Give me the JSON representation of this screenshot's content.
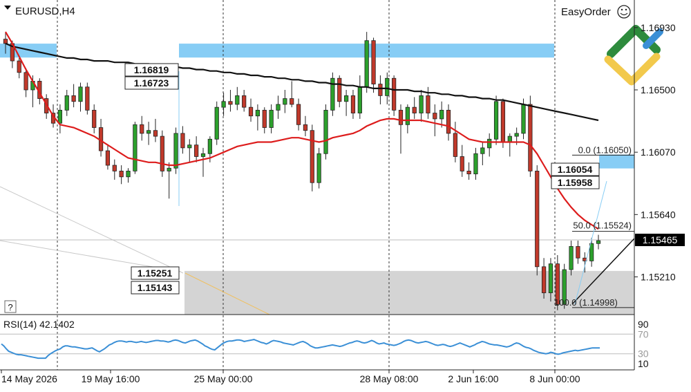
{
  "symbol_label": "EURUSD,H4",
  "easyorder_label": "EasyOrder",
  "help_label": "?",
  "colors": {
    "bull": "#2ca02c",
    "bear": "#c0392b",
    "ma_fast": "#dd1c1c",
    "ma_slow": "#111111",
    "rsi": "#3a8fd6",
    "zone_blue": "#87cdf5",
    "zone_gray": "#d4d4d4"
  },
  "chart_data": [
    {
      "type": "candlestick",
      "title": "EURUSD,H4",
      "ylim": [
        1.1495,
        1.1712
      ],
      "y_ticks": [
        "1.16930",
        "1.16500",
        "1.16070",
        "1.15640",
        "1.15210"
      ],
      "current_price": "1.15465",
      "x_tick_labels": [
        "14 May 2026",
        "19 May 16:00",
        "25 May 00:00",
        "28 May 08:00",
        "2 Jun 16:00",
        "8 Jun 00:00"
      ],
      "price_labels": [
        "1.16819",
        "1.16723",
        "1.16054",
        "1.15958",
        "1.15251",
        "1.15143"
      ],
      "fib_levels": [
        {
          "label": "0.0 (1.16050)",
          "price": 1.1605
        },
        {
          "label": "50.0 (1.15524)",
          "price": 1.15524
        },
        {
          "label": "100.0 (1.14998)",
          "price": 1.14998
        }
      ],
      "zones": [
        {
          "name": "supply-upper",
          "top": 1.16819,
          "bottom": 1.16723
        },
        {
          "name": "supply-right",
          "top": 1.16054,
          "bottom": 1.15958
        },
        {
          "name": "demand",
          "top": 1.15251,
          "bottom": 1.15143
        }
      ],
      "candles": [
        [
          1.1685,
          1.169,
          1.1675,
          1.1682
        ],
        [
          1.1682,
          1.1684,
          1.1665,
          1.167
        ],
        [
          1.167,
          1.1672,
          1.1658,
          1.1662
        ],
        [
          1.1662,
          1.1665,
          1.1645,
          1.165
        ],
        [
          1.165,
          1.166,
          1.1638,
          1.1656
        ],
        [
          1.1656,
          1.1658,
          1.164,
          1.1644
        ],
        [
          1.1644,
          1.1647,
          1.163,
          1.1634
        ],
        [
          1.1634,
          1.164,
          1.1624,
          1.1627
        ],
        [
          1.1627,
          1.164,
          1.162,
          1.1636
        ],
        [
          1.1636,
          1.165,
          1.1632,
          1.1646
        ],
        [
          1.1646,
          1.1654,
          1.1638,
          1.1642
        ],
        [
          1.1642,
          1.1655,
          1.1635,
          1.1652
        ],
        [
          1.1652,
          1.1655,
          1.1633,
          1.1636
        ],
        [
          1.1636,
          1.164,
          1.162,
          1.1624
        ],
        [
          1.1624,
          1.163,
          1.1604,
          1.1608
        ],
        [
          1.1608,
          1.1612,
          1.1595,
          1.1598
        ],
        [
          1.1598,
          1.1602,
          1.1588,
          1.1594
        ],
        [
          1.1594,
          1.1598,
          1.1585,
          1.159
        ],
        [
          1.159,
          1.1596,
          1.1586,
          1.1594
        ],
        [
          1.1594,
          1.1628,
          1.1592,
          1.1626
        ],
        [
          1.1626,
          1.1632,
          1.1615,
          1.162
        ],
        [
          1.162,
          1.1628,
          1.1612,
          1.1622
        ],
        [
          1.1622,
          1.163,
          1.1614,
          1.1618
        ],
        [
          1.1618,
          1.1622,
          1.159,
          1.1594
        ],
        [
          1.1594,
          1.16,
          1.1575,
          1.1596
        ],
        [
          1.1596,
          1.1624,
          1.1592,
          1.162
        ],
        [
          1.162,
          1.1625,
          1.1606,
          1.161
        ],
        [
          1.161,
          1.1616,
          1.16,
          1.1612
        ],
        [
          1.1612,
          1.1618,
          1.16,
          1.1604
        ],
        [
          1.1604,
          1.161,
          1.159,
          1.1606
        ],
        [
          1.1606,
          1.1618,
          1.16,
          1.1616
        ],
        [
          1.1616,
          1.1642,
          1.1612,
          1.1638
        ],
        [
          1.1638,
          1.1648,
          1.1632,
          1.1642
        ],
        [
          1.1642,
          1.165,
          1.1635,
          1.164
        ],
        [
          1.164,
          1.1652,
          1.1636,
          1.1646
        ],
        [
          1.1646,
          1.165,
          1.1635,
          1.1638
        ],
        [
          1.1638,
          1.1644,
          1.1628,
          1.1632
        ],
        [
          1.1632,
          1.164,
          1.1622,
          1.1636
        ],
        [
          1.1636,
          1.1638,
          1.162,
          1.1624
        ],
        [
          1.1624,
          1.164,
          1.162,
          1.1636
        ],
        [
          1.1636,
          1.1646,
          1.163,
          1.164
        ],
        [
          1.164,
          1.165,
          1.1634,
          1.1644
        ],
        [
          1.1644,
          1.1656,
          1.1638,
          1.164
        ],
        [
          1.164,
          1.1644,
          1.1622,
          1.1626
        ],
        [
          1.1626,
          1.1632,
          1.1618,
          1.1622
        ],
        [
          1.1622,
          1.1626,
          1.158,
          1.1586
        ],
        [
          1.1586,
          1.161,
          1.1582,
          1.1606
        ],
        [
          1.1606,
          1.164,
          1.1602,
          1.1636
        ],
        [
          1.1636,
          1.1662,
          1.1632,
          1.1658
        ],
        [
          1.1658,
          1.166,
          1.1638,
          1.1642
        ],
        [
          1.1642,
          1.165,
          1.1632,
          1.1646
        ],
        [
          1.1646,
          1.165,
          1.163,
          1.1634
        ],
        [
          1.1634,
          1.166,
          1.163,
          1.1652
        ],
        [
          1.1652,
          1.169,
          1.1648,
          1.1684
        ],
        [
          1.1684,
          1.1686,
          1.1648,
          1.1654
        ],
        [
          1.1654,
          1.166,
          1.164,
          1.1646
        ],
        [
          1.1646,
          1.1662,
          1.164,
          1.1658
        ],
        [
          1.1658,
          1.166,
          1.1632,
          1.1636
        ],
        [
          1.1636,
          1.164,
          1.1606,
          1.1626
        ],
        [
          1.1626,
          1.164,
          1.162,
          1.1638
        ],
        [
          1.1638,
          1.1645,
          1.163,
          1.1634
        ],
        [
          1.1634,
          1.165,
          1.1628,
          1.1646
        ],
        [
          1.1646,
          1.1652,
          1.163,
          1.1634
        ],
        [
          1.1634,
          1.164,
          1.1618,
          1.163
        ],
        [
          1.163,
          1.1642,
          1.1624,
          1.1636
        ],
        [
          1.1636,
          1.164,
          1.1615,
          1.162
        ],
        [
          1.162,
          1.1628,
          1.16,
          1.1604
        ],
        [
          1.1604,
          1.1612,
          1.159,
          1.1594
        ],
        [
          1.1594,
          1.16,
          1.1588,
          1.1592
        ],
        [
          1.1592,
          1.161,
          1.1588,
          1.1606
        ],
        [
          1.1606,
          1.1614,
          1.1598,
          1.161
        ],
        [
          1.161,
          1.162,
          1.1604,
          1.1616
        ],
        [
          1.1616,
          1.1646,
          1.1612,
          1.1642
        ],
        [
          1.1642,
          1.1644,
          1.161,
          1.1614
        ],
        [
          1.1614,
          1.162,
          1.1604,
          1.1618
        ],
        [
          1.1618,
          1.1624,
          1.1612,
          1.162
        ],
        [
          1.162,
          1.1644,
          1.1616,
          1.164
        ],
        [
          1.164,
          1.1646,
          1.159,
          1.1594
        ],
        [
          1.1594,
          1.1598,
          1.1522,
          1.1528
        ],
        [
          1.1528,
          1.1534,
          1.1506,
          1.151
        ],
        [
          1.151,
          1.1534,
          1.1504,
          1.153
        ],
        [
          1.153,
          1.1536,
          1.1498,
          1.1502
        ],
        [
          1.1502,
          1.153,
          1.1499,
          1.1526
        ],
        [
          1.1526,
          1.1546,
          1.1522,
          1.1542
        ],
        [
          1.1542,
          1.1546,
          1.153,
          1.1534
        ],
        [
          1.1534,
          1.1538,
          1.1524,
          1.1532
        ],
        [
          1.1532,
          1.1548,
          1.1528,
          1.1544
        ],
        [
          1.1544,
          1.155,
          1.154,
          1.1546
        ]
      ],
      "ma_fast": [
        1.169,
        1.1682,
        1.1673,
        1.1664,
        1.1656,
        1.1648,
        1.164,
        1.1632,
        1.1626,
        1.1625,
        1.1624,
        1.1622,
        1.162,
        1.1618,
        1.1615,
        1.1612,
        1.1609,
        1.1606,
        1.1603,
        1.1602,
        1.1601,
        1.16,
        1.16,
        1.1599,
        1.1598,
        1.1598,
        1.1599,
        1.16,
        1.1601,
        1.1602,
        1.1603,
        1.1605,
        1.1607,
        1.1609,
        1.1611,
        1.1612,
        1.1613,
        1.1614,
        1.1614,
        1.1614,
        1.1615,
        1.1616,
        1.1617,
        1.1617,
        1.1616,
        1.1615,
        1.1614,
        1.1615,
        1.1617,
        1.1618,
        1.1619,
        1.162,
        1.1622,
        1.1625,
        1.1627,
        1.1629,
        1.163,
        1.163,
        1.1629,
        1.1629,
        1.1629,
        1.1629,
        1.1628,
        1.1627,
        1.1626,
        1.1625,
        1.1622,
        1.1619,
        1.1616,
        1.1615,
        1.1614,
        1.1614,
        1.1614,
        1.1614,
        1.1614,
        1.1614,
        1.1614,
        1.1612,
        1.1606,
        1.1598,
        1.159,
        1.1582,
        1.1575,
        1.1569,
        1.1564,
        1.156,
        1.1557,
        1.1554
      ],
      "ma_slow": [
        1.1682,
        1.168,
        1.1679,
        1.1678,
        1.1677,
        1.1676,
        1.1675,
        1.1674,
        1.1673,
        1.1672,
        1.1672,
        1.1671,
        1.1671,
        1.167,
        1.167,
        1.167,
        1.1669,
        1.1669,
        1.1669,
        1.1668,
        1.1668,
        1.1668,
        1.1667,
        1.1667,
        1.1666,
        1.1666,
        1.1665,
        1.1665,
        1.1664,
        1.1664,
        1.1663,
        1.1663,
        1.1662,
        1.1662,
        1.1661,
        1.1661,
        1.166,
        1.166,
        1.1659,
        1.1659,
        1.1658,
        1.1658,
        1.1657,
        1.1657,
        1.1656,
        1.1656,
        1.1655,
        1.1655,
        1.1654,
        1.1654,
        1.1653,
        1.1653,
        1.1652,
        1.1652,
        1.1651,
        1.1651,
        1.1651,
        1.165,
        1.165,
        1.165,
        1.1649,
        1.1649,
        1.1648,
        1.1648,
        1.1647,
        1.1647,
        1.1646,
        1.1646,
        1.1645,
        1.1645,
        1.1644,
        1.1644,
        1.1643,
        1.1643,
        1.1642,
        1.1641,
        1.164,
        1.1639,
        1.1638,
        1.1637,
        1.1636,
        1.1635,
        1.1634,
        1.1633,
        1.1632,
        1.1631,
        1.163,
        1.1629
      ]
    },
    {
      "type": "line",
      "title": "RSI(14) 42.1402",
      "ylim": [
        0,
        100
      ],
      "y_ticks": [
        "90",
        "70",
        "30",
        "10"
      ],
      "levels": [
        70,
        30
      ],
      "series": [
        {
          "values": [
            50,
            46,
            40,
            35,
            33,
            31,
            29,
            28,
            28,
            27,
            26,
            25,
            24,
            23,
            22,
            21,
            21,
            21,
            21,
            26,
            30,
            33,
            36,
            38,
            40,
            44,
            46,
            46,
            45,
            44,
            44,
            43,
            42,
            41,
            40,
            40,
            41,
            42,
            39,
            36,
            34,
            37,
            40,
            44,
            48,
            50,
            53,
            55,
            56,
            56,
            55,
            54,
            55,
            55,
            54,
            53,
            54,
            55,
            54,
            53,
            54,
            55,
            56,
            57,
            57,
            56,
            56,
            55,
            54,
            55,
            57,
            58,
            57,
            55,
            53,
            52,
            54,
            56,
            57,
            58,
            56,
            53,
            50,
            46,
            44,
            41,
            39,
            38,
            42,
            46,
            50,
            53,
            55,
            56,
            56,
            57,
            58,
            58,
            57,
            55,
            56,
            57,
            58,
            59,
            57,
            55,
            53,
            52,
            50,
            52,
            55,
            57,
            56,
            55,
            54,
            52,
            51,
            50,
            49,
            48,
            50,
            52,
            54,
            55,
            53,
            50,
            46,
            44,
            42,
            42,
            43,
            44,
            45,
            46,
            47,
            48,
            47,
            46,
            45,
            46,
            48,
            50,
            52,
            53,
            55,
            56,
            55,
            53,
            52,
            53,
            55,
            57,
            55,
            52,
            50,
            51,
            52,
            50,
            49,
            48,
            47,
            48,
            50,
            52,
            55,
            57,
            58,
            57,
            55,
            53,
            52,
            53,
            54,
            55,
            54,
            52,
            50,
            48,
            47,
            48,
            49,
            48,
            46,
            45,
            46,
            48,
            50,
            52,
            50,
            48,
            46,
            44,
            46,
            48,
            51,
            53,
            55,
            54,
            52,
            50,
            49,
            48,
            48,
            47,
            46,
            45,
            44,
            45,
            47,
            50,
            52,
            51,
            48,
            45,
            43,
            42,
            40,
            37,
            35,
            33,
            32,
            31,
            30,
            31,
            33,
            32,
            30,
            29,
            30,
            32,
            33,
            34,
            35,
            36,
            37,
            36,
            37,
            38,
            39,
            40,
            41,
            42,
            42,
            42,
            42
          ]
        }
      ]
    }
  ]
}
